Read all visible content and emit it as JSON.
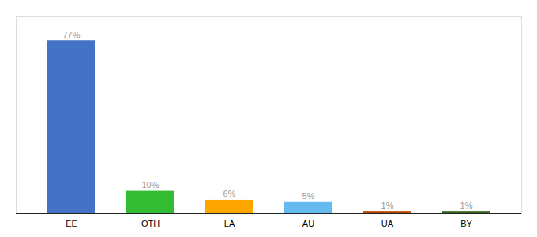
{
  "chart_data": {
    "type": "bar",
    "categories": [
      "EE",
      "OTH",
      "LA",
      "AU",
      "UA",
      "BY"
    ],
    "values": [
      77,
      10,
      6,
      5,
      1,
      1
    ],
    "value_labels": [
      "77%",
      "10%",
      "6%",
      "5%",
      "1%",
      "1%"
    ],
    "colors": [
      "#4472C4",
      "#33BB33",
      "#FFA500",
      "#66BBEE",
      "#BB4400",
      "#336622"
    ],
    "ylim": [
      0,
      88
    ],
    "data_labels": true,
    "tick_labels": "x",
    "grid": false
  }
}
